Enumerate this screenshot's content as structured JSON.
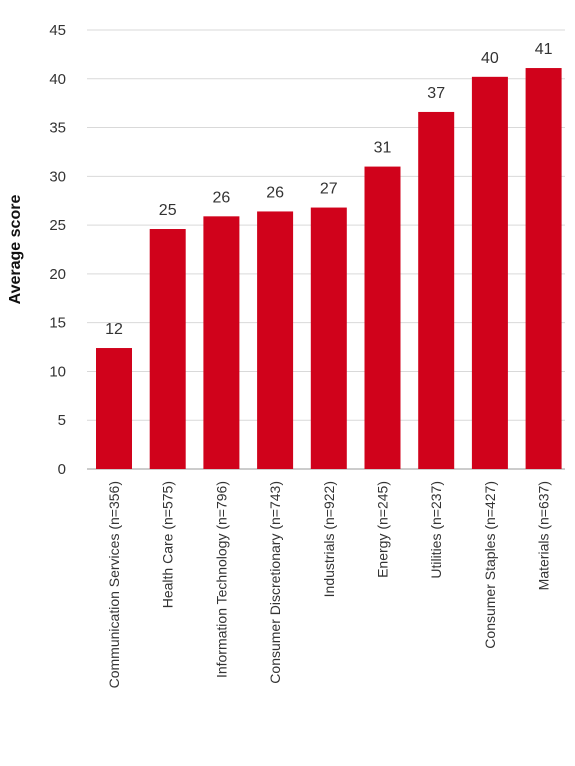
{
  "chart_data": {
    "type": "bar",
    "title": "",
    "xlabel": "",
    "ylabel": "Average score",
    "ylim": [
      0,
      45
    ],
    "yticks": [
      0,
      5,
      10,
      15,
      20,
      25,
      30,
      35,
      40,
      45
    ],
    "grid": "horizontal",
    "categories": [
      "Communication Services (n=356)",
      "Health Care (n=575)",
      "Information Technology (n=796)",
      "Consumer Discretionary (n=743)",
      "Industrials (n=922)",
      "Energy (n=245)",
      "Utilities (n=237)",
      "Consumer Staples (n=427)",
      "Materials (n=637)"
    ],
    "values": [
      12.4,
      24.6,
      25.9,
      26.4,
      26.8,
      31.0,
      36.6,
      40.2,
      41.1
    ],
    "data_labels": [
      "12",
      "25",
      "26",
      "26",
      "27",
      "31",
      "37",
      "40",
      "41"
    ],
    "bar_color": "#d0021b"
  }
}
